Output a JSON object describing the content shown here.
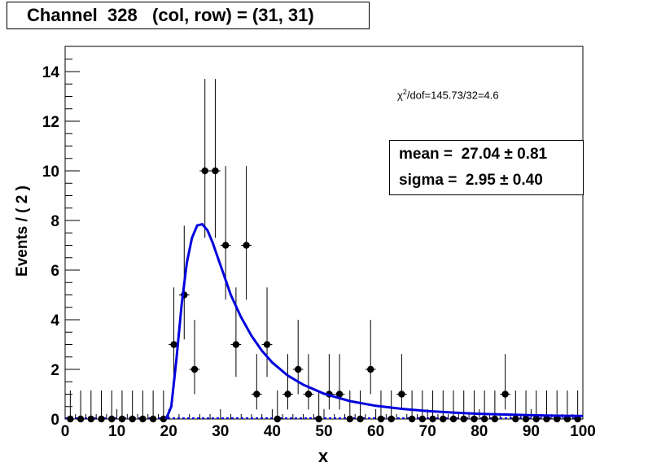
{
  "chart_data": {
    "type": "scatter",
    "title": "Channel  328   (col, row) = (31, 31)",
    "xlabel": "x",
    "ylabel": "Events / ( 2 )",
    "xlim": [
      0,
      100
    ],
    "ylim": [
      0,
      15
    ],
    "x_ticks": [
      "0",
      "10",
      "20",
      "30",
      "40",
      "50",
      "60",
      "70",
      "80",
      "90",
      "100"
    ],
    "y_ticks": [
      "0",
      "2",
      "4",
      "6",
      "8",
      "10",
      "12",
      "14"
    ],
    "chi2_text": "/dof=145.73/32=4.6",
    "stats": {
      "mean_text": "mean =  27.04 ± 0.81",
      "sigma_text": "sigma =  2.95 ± 0.40"
    },
    "series": [
      {
        "type": "points_with_errors",
        "color": "#000000",
        "x": [
          1,
          3,
          5,
          7,
          9,
          11,
          13,
          15,
          17,
          19,
          21,
          23,
          25,
          27,
          29,
          31,
          33,
          35,
          37,
          39,
          41,
          43,
          45,
          47,
          49,
          51,
          53,
          55,
          57,
          59,
          61,
          63,
          65,
          67,
          69,
          71,
          73,
          75,
          77,
          79,
          81,
          83,
          85,
          87,
          89,
          91,
          93,
          95,
          97,
          99
        ],
        "y": [
          0,
          0,
          0,
          0,
          0,
          0,
          0,
          0,
          0,
          0,
          3,
          5,
          2,
          10,
          10,
          7,
          3,
          7,
          1,
          3,
          0,
          1,
          2,
          1,
          0,
          1,
          1,
          0,
          0,
          2,
          0,
          0,
          1,
          0,
          0,
          0,
          0,
          0,
          0,
          0,
          0,
          0,
          1,
          0,
          0,
          0,
          0,
          0,
          0,
          0
        ]
      },
      {
        "type": "fit_curve",
        "color": "#0000dd",
        "x": [
          19.5,
          20.5,
          21.5,
          22.5,
          23.5,
          24.5,
          25.5,
          26.5,
          27.5,
          28.5,
          29.5,
          30.5,
          32,
          34,
          36,
          38,
          40,
          43,
          46,
          50,
          55,
          60,
          65,
          70,
          75,
          80,
          85,
          90,
          95,
          100
        ],
        "y": [
          0,
          0.5,
          2.4,
          4.6,
          6.3,
          7.3,
          7.8,
          7.85,
          7.6,
          7.1,
          6.5,
          5.9,
          5.0,
          4.1,
          3.35,
          2.75,
          2.28,
          1.75,
          1.38,
          1.02,
          0.72,
          0.53,
          0.41,
          0.32,
          0.26,
          0.21,
          0.18,
          0.15,
          0.13,
          0.12
        ]
      }
    ]
  }
}
